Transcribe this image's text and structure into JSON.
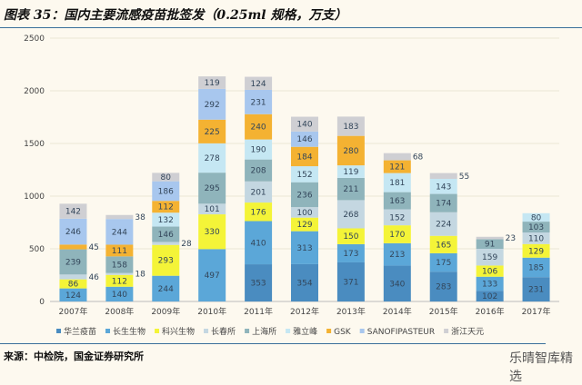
{
  "title": "图表 35：国内主要流感疫苗批签发（0.25ml 规格，万支）",
  "source": "来源：中检院，国金证券研究所",
  "watermark": "乐晴智库精选",
  "chart_data": {
    "type": "bar",
    "stacked": true,
    "title": "图表 35：国内主要流感疫苗批签发（0.25ml 规格，万支）",
    "xlabel": "",
    "ylabel": "",
    "ylim": [
      0,
      2500
    ],
    "yticks": [
      0,
      500,
      1000,
      1500,
      2000,
      2500
    ],
    "grid": true,
    "legend_position": "bottom",
    "categories": [
      "2007年",
      "2008年",
      "2009年",
      "2010年",
      "2011年",
      "2012年",
      "2013年",
      "2014年",
      "2015年",
      "2016年",
      "2017年"
    ],
    "series": [
      {
        "name": "华兰疫苗",
        "color": "#4a8cc0",
        "values": [
          0,
          0,
          0,
          0,
          353,
          354,
          371,
          340,
          283,
          102,
          231
        ]
      },
      {
        "name": "长生生物",
        "color": "#5ba7d8",
        "values": [
          124,
          140,
          244,
          497,
          410,
          313,
          173,
          213,
          175,
          133,
          185
        ]
      },
      {
        "name": "科兴生物",
        "color": "#f4f438",
        "values": [
          86,
          112,
          293,
          330,
          176,
          129,
          150,
          170,
          165,
          106,
          129
        ]
      },
      {
        "name": "长春所",
        "color": "#c4d7e1",
        "values": [
          46,
          18,
          28,
          101,
          201,
          100,
          268,
          152,
          224,
          159,
          110
        ]
      },
      {
        "name": "上海所",
        "color": "#8fb4bb",
        "values": [
          239,
          158,
          146,
          295,
          208,
          236,
          211,
          163,
          174,
          91,
          103
        ]
      },
      {
        "name": "雅立峰",
        "color": "#c5e7f3",
        "values": [
          0,
          0,
          132,
          278,
          190,
          152,
          119,
          181,
          143,
          0,
          80
        ]
      },
      {
        "name": "GSK",
        "color": "#f4b232",
        "values": [
          45,
          111,
          112,
          225,
          240,
          184,
          280,
          121,
          0,
          0,
          0
        ]
      },
      {
        "name": "SANOFIPASTEUR",
        "color": "#a8c7ee",
        "values": [
          246,
          244,
          186,
          292,
          231,
          146,
          0,
          0,
          0,
          0,
          0
        ]
      },
      {
        "name": "浙江天元",
        "color": "#cfcfd3",
        "values": [
          142,
          38,
          80,
          119,
          124,
          140,
          183,
          68,
          55,
          23,
          0
        ]
      }
    ]
  }
}
